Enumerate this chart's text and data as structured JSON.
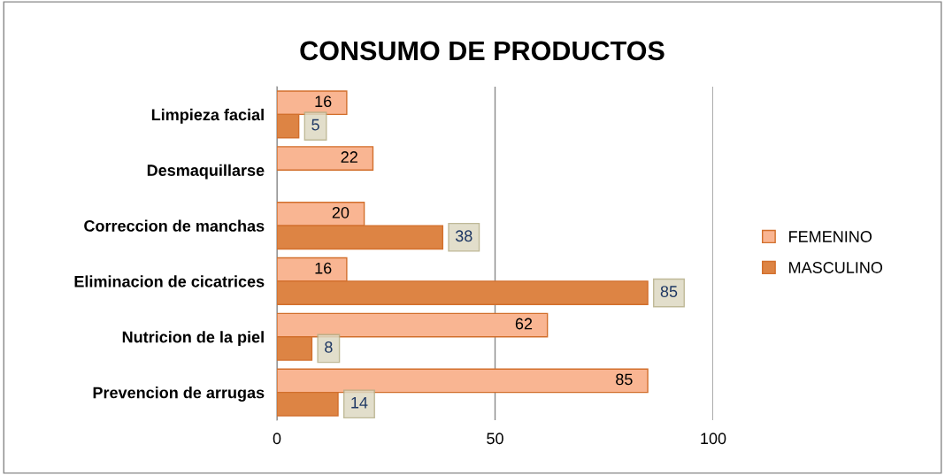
{
  "chart_data": {
    "type": "bar",
    "orientation": "horizontal",
    "title": "CONSUMO DE PRODUCTOS",
    "categories": [
      "Limpieza facial",
      "Desmaquillarse",
      "Correccion de manchas",
      "Eliminacion de cicatrices",
      "Nutricion de la piel",
      "Prevencion de arrugas"
    ],
    "series": [
      {
        "name": "FEMENINO",
        "color": "#f9b592",
        "values": [
          16,
          22,
          20,
          16,
          62,
          85
        ]
      },
      {
        "name": "MASCULINO",
        "color": "#dd8444",
        "values": [
          5,
          null,
          38,
          85,
          8,
          14
        ]
      }
    ],
    "xlim": [
      0,
      100
    ],
    "xticks": [
      0,
      50,
      100
    ],
    "grid": "x",
    "legend": "right",
    "data_labels": true
  }
}
